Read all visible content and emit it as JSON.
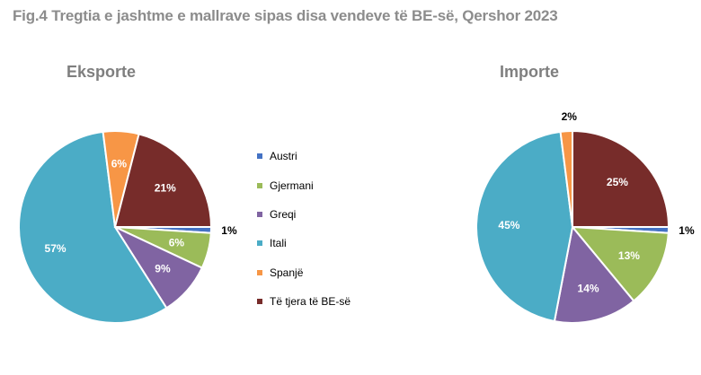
{
  "figure_title": "Fig.4 Tregtia e jashtme  e mallrave sipas disa vendeve  të BE-së, Qershor 2023",
  "legend": [
    {
      "label": "Austri",
      "color": "#4472c4"
    },
    {
      "label": "Gjermani",
      "color": "#9bbb59"
    },
    {
      "label": "Greqi",
      "color": "#8064a2"
    },
    {
      "label": "Itali",
      "color": "#4bacc6"
    },
    {
      "label": "Spanjë",
      "color": "#f79646"
    },
    {
      "label": "Të tjera të BE-së",
      "color": "#772c2a"
    }
  ],
  "chart_data": [
    {
      "type": "pie",
      "title": "Eksporte",
      "categories": [
        "Austri",
        "Gjermani",
        "Greqi",
        "Itali",
        "Spanjë",
        "Të tjera të BE-së"
      ],
      "values": [
        1,
        6,
        9,
        57,
        6,
        21
      ],
      "labels": [
        "1%",
        "6%",
        "9%",
        "57%",
        "6%",
        "21%"
      ]
    },
    {
      "type": "pie",
      "title": "Importe",
      "categories": [
        "Austri",
        "Gjermani",
        "Greqi",
        "Itali",
        "Spanjë",
        "Të tjera të BE-së"
      ],
      "values": [
        1,
        13,
        14,
        45,
        2,
        25
      ],
      "labels": [
        "1%",
        "13%",
        "14%",
        "45%",
        "2%",
        "25%"
      ]
    }
  ]
}
